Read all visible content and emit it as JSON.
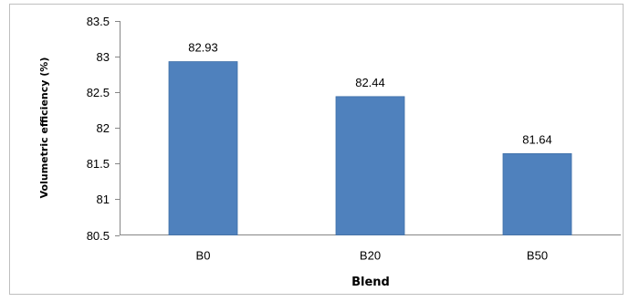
{
  "chart_data": {
    "type": "bar",
    "title": "",
    "xlabel": "Blend",
    "ylabel": "Volumetric efficiency (%)",
    "categories": [
      "B0",
      "B20",
      "B50"
    ],
    "values": [
      82.93,
      82.44,
      81.64
    ],
    "data_labels": [
      "82.93",
      "82.44",
      "81.64"
    ],
    "ylim": [
      80.5,
      83.5
    ],
    "yticks": [
      "80.5",
      "81",
      "81.5",
      "82",
      "82.5",
      "83",
      "83.5"
    ],
    "ytick_values": [
      80.5,
      81,
      81.5,
      82,
      82.5,
      83,
      83.5
    ],
    "grid": false,
    "legend": "none",
    "bar_color": "#4f81bd",
    "bar_edge_color": "#3e6fa8"
  }
}
